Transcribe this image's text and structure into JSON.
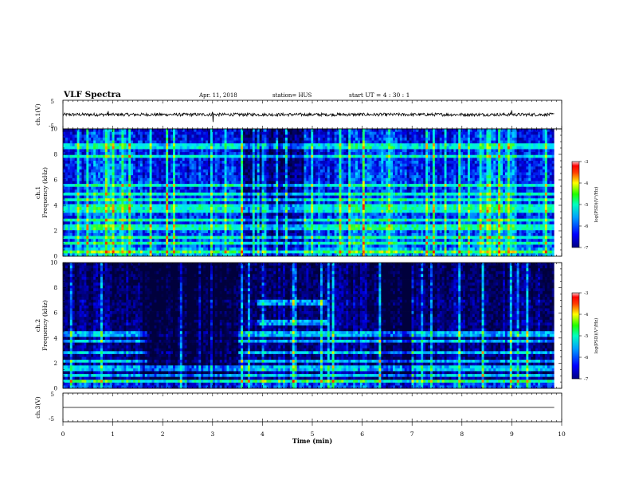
{
  "header": {
    "title": "VLF Spectra",
    "date": "Apr. 11, 2018",
    "station": "station= HUS",
    "start": "start  UT =  4 : 30 : 1"
  },
  "chart_data": [
    {
      "type": "line",
      "name": "ch1-waveform",
      "ylabel": "ch.1(V)",
      "ylim": [
        -5,
        5
      ],
      "yticks": [
        "5",
        "-5"
      ],
      "xlim": [
        0,
        10
      ],
      "baseline": 0,
      "spikes_min": [
        0.9,
        3.0,
        9.0
      ]
    },
    {
      "type": "heatmap",
      "name": "ch1-spectrogram",
      "ylabel_top": "ch.1",
      "ylabel": "Frequency (kHz)",
      "ylim": [
        0,
        10
      ],
      "yticks": [
        "0",
        "2",
        "4",
        "6",
        "8",
        "10"
      ],
      "xlim": [
        0,
        9.85
      ],
      "bands_khz": [
        0.4,
        1.0,
        1.5,
        2.3,
        2.9,
        3.5,
        3.9,
        4.4,
        4.9,
        5.6,
        7.9,
        8.6
      ],
      "colorbar": {
        "label": "log(PSD)(V²/Hz)",
        "ticks": [
          "-3",
          "-4",
          "-5",
          "-6",
          "-7"
        ],
        "range": [
          -7,
          -3
        ]
      }
    },
    {
      "type": "heatmap",
      "name": "ch2-spectrogram",
      "ylabel_top": "ch.2",
      "ylabel": "Frequency (kHz)",
      "ylim": [
        0,
        10
      ],
      "yticks": [
        "0",
        "2",
        "4",
        "6",
        "8",
        "10"
      ],
      "xlim": [
        0,
        9.85
      ],
      "bands_khz": [
        0.5,
        1.0,
        1.6,
        2.2,
        2.9,
        3.7,
        4.3,
        5.2,
        6.8
      ],
      "colorbar": {
        "label": "log(PSD)(V²/Hz)",
        "ticks": [
          "-3",
          "-4",
          "-5",
          "-6",
          "-7"
        ],
        "range": [
          -7,
          -3
        ]
      }
    },
    {
      "type": "line",
      "name": "ch3-waveform",
      "ylabel": "ch.3(V)",
      "ylim": [
        -5,
        5
      ],
      "yticks": [
        "5",
        "-5"
      ],
      "xlim": [
        0,
        10
      ],
      "baseline": 0
    }
  ],
  "xaxis": {
    "label": "Time (min)",
    "ticks": [
      "0",
      "1",
      "2",
      "3",
      "4",
      "5",
      "6",
      "7",
      "8",
      "9",
      "10"
    ]
  }
}
